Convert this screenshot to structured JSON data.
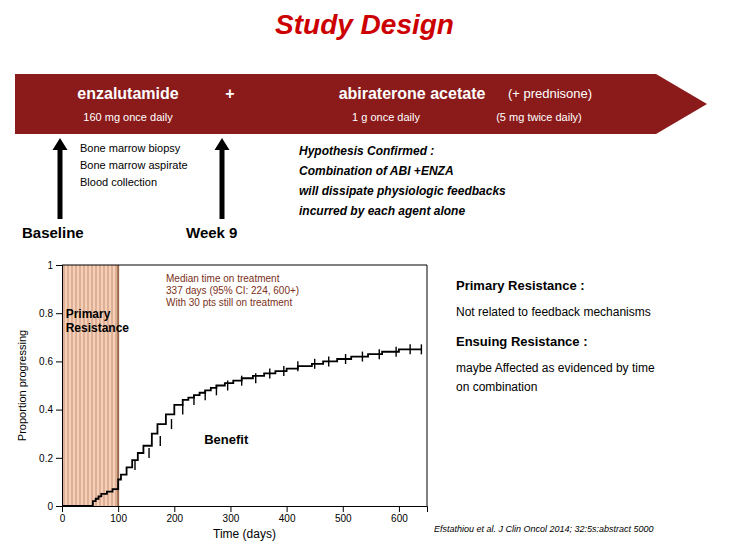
{
  "chart_data": {
    "type": "line",
    "title": "Study Design",
    "title_color": "#cc0000",
    "xlabel": "Time (days)",
    "ylabel": "Proportion progressing",
    "xlim": [
      0,
      650
    ],
    "xticks": [
      0,
      100,
      200,
      300,
      400,
      500,
      600
    ],
    "ylim": [
      0,
      1
    ],
    "yticks": [
      0,
      0.2,
      0.4,
      0.6,
      0.8,
      1
    ],
    "grid": false,
    "series": [
      {
        "type": "line",
        "color": "#000000",
        "x": [
          0,
          0,
          55,
          55,
          60,
          60,
          65,
          65,
          70,
          70,
          80,
          80,
          90,
          90,
          100,
          100,
          105,
          105,
          115,
          115,
          125,
          125,
          135,
          135,
          145,
          145,
          160,
          160,
          170,
          170,
          185,
          185,
          200,
          200,
          215,
          215,
          225,
          225,
          235,
          235,
          245,
          245,
          255,
          255,
          265,
          265,
          275,
          275,
          290,
          290,
          305,
          305,
          320,
          320,
          340,
          340,
          360,
          360,
          380,
          380,
          400,
          400,
          420,
          420,
          445,
          445,
          465,
          465,
          490,
          490,
          515,
          515,
          545,
          545,
          570,
          570,
          600,
          600,
          640
        ],
        "values": [
          0.0,
          0.0,
          0.0,
          0.02,
          0.02,
          0.03,
          0.03,
          0.04,
          0.04,
          0.05,
          0.05,
          0.06,
          0.06,
          0.07,
          0.07,
          0.11,
          0.11,
          0.13,
          0.13,
          0.16,
          0.16,
          0.19,
          0.19,
          0.22,
          0.22,
          0.25,
          0.25,
          0.3,
          0.3,
          0.34,
          0.34,
          0.38,
          0.38,
          0.42,
          0.42,
          0.44,
          0.44,
          0.45,
          0.45,
          0.46,
          0.46,
          0.47,
          0.47,
          0.48,
          0.48,
          0.49,
          0.49,
          0.5,
          0.5,
          0.51,
          0.51,
          0.52,
          0.52,
          0.53,
          0.53,
          0.54,
          0.54,
          0.55,
          0.55,
          0.56,
          0.56,
          0.57,
          0.57,
          0.58,
          0.58,
          0.59,
          0.59,
          0.6,
          0.6,
          0.61,
          0.61,
          0.62,
          0.62,
          0.63,
          0.63,
          0.64,
          0.64,
          0.65,
          0.65
        ]
      },
      {
        "type": "scatter",
        "marker": "|",
        "color": "#000000",
        "x": [
          130,
          155,
          175,
          195,
          215,
          235,
          255,
          275,
          295,
          320,
          345,
          370,
          395,
          420,
          450,
          475,
          505,
          535,
          565,
          595,
          620,
          640
        ],
        "values": [
          0.17,
          0.22,
          0.27,
          0.34,
          0.4,
          0.44,
          0.46,
          0.48,
          0.5,
          0.52,
          0.53,
          0.55,
          0.56,
          0.58,
          0.59,
          0.6,
          0.61,
          0.62,
          0.63,
          0.64,
          0.65,
          0.65
        ]
      }
    ],
    "band": {
      "x": [
        0,
        100
      ],
      "color": "#f0a070"
    },
    "annotations": [
      "Primary\nResistance",
      "Benefit",
      "Median time on treatment\n337 days (95% CI: 224, 600+)\nWith 30 pts still on treatment"
    ],
    "annotation_color": "#7b3020",
    "design": {
      "arrow_color": "#8b1a1a",
      "drugs": [
        "enzalutamide",
        "+",
        "abiraterone acetate",
        "(+ prednisone)"
      ],
      "doses": [
        "160 mg once daily",
        "1 g once daily",
        "(5 mg twice daily)"
      ],
      "timepoints": [
        "Baseline",
        "Week 9"
      ],
      "biopsy_text": "Bone marrow biopsy\nBone marrow aspirate\nBlood collection",
      "hypothesis_text": "Hypothesis Confirmed :\nCombination of ABI +ENZA\nwill dissipate physiologic feedbacks\nincurred by each agent alone"
    },
    "notes": [
      {
        "heading": "Primary Resistance :",
        "text": "Not related to feedback mechanisms"
      },
      {
        "heading": "Ensuing Resistance :",
        "text": "maybe Affected as evidenced by time\non combination"
      }
    ],
    "citation": "Efstathiou et al. J Clin Oncol 2014; 32:5s:abstract 5000"
  }
}
